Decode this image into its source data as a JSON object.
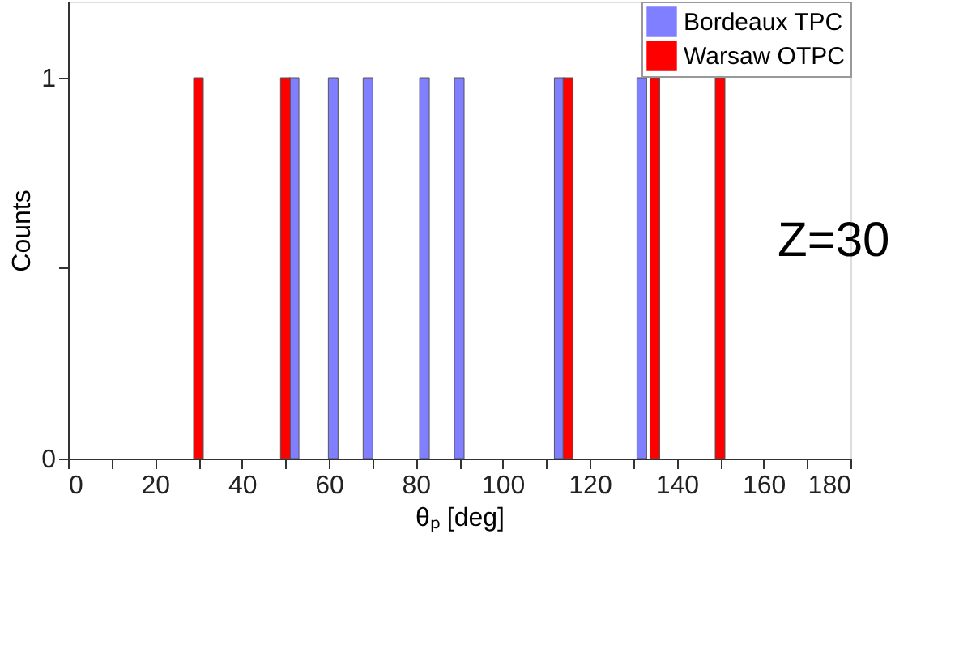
{
  "chart_data": {
    "type": "bar",
    "xlabel": "θₚ [deg]",
    "ylabel": "Counts",
    "series": [
      {
        "name": "Bordeaux TPC",
        "color": "#7f7fff",
        "x": [
          52,
          61,
          69,
          82,
          90,
          113,
          132
        ],
        "values": [
          1,
          1,
          1,
          1,
          1,
          1,
          1
        ]
      },
      {
        "name": "Warsaw OTPC",
        "color": "#ff0000",
        "x": [
          30,
          50,
          115,
          135,
          150
        ],
        "values": [
          1,
          1,
          1,
          1,
          1
        ]
      }
    ],
    "xlim": [
      0,
      180
    ],
    "xticks": [
      0,
      {
        "value": 10,
        "label": null
      },
      20,
      {
        "value": 30,
        "label": null
      },
      40,
      {
        "value": 50,
        "label": null
      },
      60,
      {
        "value": 70,
        "label": null
      },
      80,
      {
        "value": 90,
        "label": null
      },
      100,
      {
        "value": 110,
        "label": null
      },
      120,
      {
        "value": 130,
        "label": null
      },
      140,
      {
        "value": 150,
        "label": null
      },
      160,
      {
        "value": 170,
        "label": null
      },
      180
    ],
    "ylim": [
      0,
      1.2
    ],
    "yticks": [
      0,
      {
        "value": 0.5,
        "label": null
      },
      1
    ],
    "grid": false,
    "legend": "top right",
    "annotations": [
      "Z=30"
    ]
  }
}
